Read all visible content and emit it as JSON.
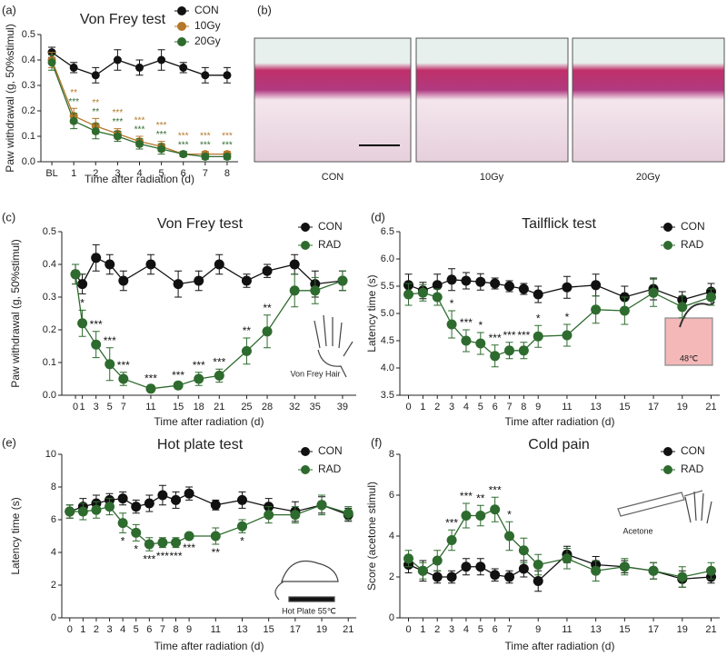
{
  "chart_data": [
    {
      "type": "line",
      "panel_label": "(a)",
      "title": "Von Frey test",
      "x_label": "Time after radiation (d)",
      "y_label": "Paw withdrawal (g, 50%stimul)",
      "categories": [
        "BL",
        "1",
        "2",
        "3",
        "4",
        "5",
        "6",
        "7",
        "8"
      ],
      "ylim": [
        0,
        0.5
      ],
      "yticks": [
        {
          "value": 0,
          "label": "0.0"
        },
        0.1,
        0.2,
        0.3,
        0.4,
        0.5
      ],
      "series": [
        {
          "name": "CON",
          "color": "#111111",
          "values": [
            0.43,
            0.37,
            0.34,
            0.4,
            0.37,
            0.4,
            0.37,
            0.34,
            0.34
          ],
          "errors": [
            0.02,
            0.02,
            0.03,
            0.04,
            0.03,
            0.04,
            0.02,
            0.03,
            0.03
          ]
        },
        {
          "name": "10Gy",
          "color": "#b5772a",
          "values": [
            0.4,
            0.18,
            0.14,
            0.11,
            0.08,
            0.06,
            0.03,
            0.03,
            0.03
          ],
          "errors": [
            0.03,
            0.03,
            0.03,
            0.02,
            0.02,
            0.02,
            0.01,
            0.01,
            0.01
          ],
          "significance": [
            null,
            "**",
            "**",
            "***",
            "***",
            "***",
            "***",
            "***",
            "***"
          ]
        },
        {
          "name": "20Gy",
          "color": "#2e6b2e",
          "values": [
            0.39,
            0.16,
            0.12,
            0.1,
            0.07,
            0.05,
            0.03,
            0.02,
            0.02
          ],
          "errors": [
            0.03,
            0.03,
            0.03,
            0.02,
            0.02,
            0.02,
            0.01,
            0.01,
            0.01
          ],
          "significance": [
            null,
            "***",
            "**",
            "***",
            "***",
            "***",
            "***",
            "***",
            "***"
          ]
        }
      ]
    },
    {
      "type": "line",
      "panel_label": "(c)",
      "title": "Von Frey test",
      "x_label": "Time after radiation (d)",
      "y_label": "Paw withdrawal (g, 50%stimul)",
      "annotation": "Von Frey Hair",
      "x": [
        0,
        1,
        3,
        5,
        7,
        11,
        15,
        18,
        21,
        25,
        28,
        32,
        35,
        39
      ],
      "xlim": [
        -2,
        41
      ],
      "xticks": [
        0,
        1,
        3,
        5,
        7,
        11,
        15,
        18,
        21,
        25,
        28,
        32,
        35,
        39
      ],
      "ylim": [
        0,
        0.5
      ],
      "yticks": [
        {
          "value": 0,
          "label": "0.0"
        },
        0.1,
        0.2,
        0.3,
        0.4,
        0.5
      ],
      "series": [
        {
          "name": "CON",
          "color": "#111111",
          "values": [
            0.37,
            0.34,
            0.42,
            0.4,
            0.35,
            0.4,
            0.34,
            0.35,
            0.4,
            0.35,
            0.38,
            0.4,
            0.34,
            0.35
          ],
          "errors": [
            0.03,
            0.03,
            0.04,
            0.03,
            0.03,
            0.03,
            0.04,
            0.03,
            0.03,
            0.02,
            0.02,
            0.03,
            0.04,
            0.03
          ]
        },
        {
          "name": "RAD",
          "color": "#2e6b2e",
          "values": [
            0.37,
            0.22,
            0.155,
            0.095,
            0.05,
            0.02,
            0.03,
            0.05,
            0.06,
            0.135,
            0.195,
            0.32,
            0.32,
            0.35
          ],
          "errors": [
            0.03,
            0.04,
            0.04,
            0.05,
            0.02,
            0.01,
            0.01,
            0.02,
            0.02,
            0.04,
            0.05,
            0.05,
            0.04,
            0.03
          ],
          "significance": [
            null,
            "*",
            "***",
            "***",
            "***",
            "***",
            "***",
            "***",
            "***",
            "**",
            "**",
            null,
            null,
            null
          ]
        }
      ]
    },
    {
      "type": "line",
      "panel_label": "(d)",
      "title": "Tailflick test",
      "x_label": "Time after radiation (d)",
      "y_label": "Latency time (s)",
      "annotation": "48℃",
      "x": [
        0,
        1,
        2,
        3,
        4,
        5,
        6,
        7,
        8,
        9,
        11,
        13,
        15,
        17,
        19,
        21
      ],
      "xlim": [
        -0.6,
        21.6
      ],
      "xticks": [
        0,
        1,
        2,
        3,
        4,
        5,
        6,
        7,
        8,
        9,
        11,
        13,
        15,
        17,
        19,
        21
      ],
      "ylim": [
        3.5,
        6.5
      ],
      "yticks": [
        3.5,
        {
          "value": 4,
          "label": "4.0"
        },
        4.5,
        {
          "value": 5,
          "label": "5.0"
        },
        5.5,
        {
          "value": 6,
          "label": "6.0"
        },
        6.5
      ],
      "series": [
        {
          "name": "CON",
          "color": "#111111",
          "values": [
            5.52,
            5.42,
            5.52,
            5.62,
            5.6,
            5.58,
            5.55,
            5.5,
            5.45,
            5.35,
            5.48,
            5.52,
            5.3,
            5.45,
            5.25,
            5.4
          ],
          "errors": [
            0.2,
            0.15,
            0.2,
            0.2,
            0.15,
            0.15,
            0.1,
            0.1,
            0.1,
            0.15,
            0.2,
            0.2,
            0.2,
            0.2,
            0.15,
            0.15
          ]
        },
        {
          "name": "RAD",
          "color": "#2e6b2e",
          "values": [
            5.35,
            5.38,
            5.3,
            4.8,
            4.5,
            4.45,
            4.22,
            4.32,
            4.32,
            4.58,
            4.6,
            5.07,
            5.05,
            5.38,
            5.12,
            5.3
          ],
          "errors": [
            0.2,
            0.15,
            0.15,
            0.25,
            0.2,
            0.2,
            0.2,
            0.15,
            0.15,
            0.2,
            0.2,
            0.25,
            0.25,
            0.25,
            0.2,
            0.15
          ],
          "significance": [
            null,
            null,
            null,
            "*",
            "***",
            "*",
            "***",
            "***",
            "***",
            "*",
            "*",
            null,
            null,
            null,
            null,
            null
          ]
        }
      ]
    },
    {
      "type": "line",
      "panel_label": "(e)",
      "title": "Hot plate test",
      "x_label": "Time after radiation (d)",
      "y_label": "Latency time (s)",
      "annotation": "Hot Plate 55℃",
      "x": [
        0,
        1,
        2,
        3,
        4,
        5,
        6,
        7,
        8,
        9,
        11,
        13,
        15,
        17,
        19,
        21
      ],
      "xlim": [
        -0.6,
        21.6
      ],
      "xticks": [
        0,
        1,
        2,
        3,
        4,
        5,
        6,
        7,
        8,
        9,
        11,
        13,
        15,
        17,
        19,
        21
      ],
      "ylim": [
        0,
        10
      ],
      "yticks": [
        0,
        2,
        4,
        6,
        8,
        10
      ],
      "series": [
        {
          "name": "CON",
          "color": "#111111",
          "values": [
            6.5,
            6.8,
            7.0,
            7.2,
            7.3,
            6.8,
            7.0,
            7.5,
            7.2,
            7.6,
            6.9,
            7.2,
            6.8,
            6.5,
            6.9,
            6.3
          ],
          "errors": [
            0.4,
            0.5,
            0.5,
            0.4,
            0.4,
            0.4,
            0.5,
            0.6,
            0.5,
            0.4,
            0.3,
            0.5,
            0.5,
            0.6,
            0.5,
            0.4
          ]
        },
        {
          "name": "RAD",
          "color": "#2e6b2e",
          "values": [
            6.5,
            6.5,
            6.6,
            6.8,
            5.8,
            5.2,
            4.5,
            4.6,
            4.6,
            5.0,
            5.0,
            5.6,
            6.3,
            6.3,
            6.9,
            6.4
          ],
          "errors": [
            0.4,
            0.5,
            0.5,
            0.5,
            0.6,
            0.5,
            0.4,
            0.3,
            0.3,
            0.2,
            0.5,
            0.4,
            0.5,
            0.5,
            0.6,
            0.4
          ],
          "significance": [
            null,
            null,
            null,
            null,
            "*",
            "*",
            "***",
            "***",
            "***",
            "***",
            "**",
            "*",
            null,
            null,
            null,
            null
          ]
        }
      ]
    },
    {
      "type": "line",
      "panel_label": "(f)",
      "title": "Cold pain",
      "x_label": "Time after radiation (d)",
      "y_label": "Score (acetone stimul)",
      "annotation": "Acetone",
      "x": [
        0,
        1,
        2,
        3,
        4,
        5,
        6,
        7,
        8,
        9,
        11,
        13,
        15,
        17,
        19,
        21
      ],
      "xlim": [
        -0.6,
        21.6
      ],
      "xticks": [
        0,
        1,
        2,
        3,
        4,
        5,
        6,
        7,
        9,
        11,
        13,
        15,
        17,
        19,
        21
      ],
      "ylim": [
        0,
        8
      ],
      "yticks": [
        0,
        2,
        4,
        6,
        8
      ],
      "series": [
        {
          "name": "CON",
          "color": "#111111",
          "values": [
            2.6,
            2.3,
            2.0,
            2.0,
            2.5,
            2.5,
            2.1,
            2.0,
            2.4,
            1.8,
            3.1,
            2.6,
            2.5,
            2.3,
            1.9,
            2.0
          ],
          "errors": [
            0.4,
            0.5,
            0.3,
            0.3,
            0.4,
            0.4,
            0.3,
            0.3,
            0.4,
            0.5,
            0.4,
            0.4,
            0.3,
            0.4,
            0.4,
            0.3
          ]
        },
        {
          "name": "RAD",
          "color": "#2e6b2e",
          "values": [
            2.9,
            2.3,
            2.8,
            3.8,
            5.0,
            5.0,
            5.3,
            4.0,
            3.3,
            2.6,
            2.9,
            2.3,
            2.5,
            2.3,
            2.0,
            2.3
          ],
          "errors": [
            0.4,
            0.4,
            0.5,
            0.5,
            0.6,
            0.5,
            0.6,
            0.7,
            0.6,
            0.5,
            0.5,
            0.5,
            0.4,
            0.4,
            0.5,
            0.4
          ],
          "significance": [
            null,
            null,
            null,
            "***",
            "***",
            "**",
            "***",
            "*",
            null,
            null,
            null,
            null,
            null,
            null,
            null,
            null
          ]
        }
      ]
    }
  ],
  "histology": {
    "panel_label": "(b)",
    "images": [
      "CON",
      "10Gy",
      "20Gy"
    ]
  }
}
